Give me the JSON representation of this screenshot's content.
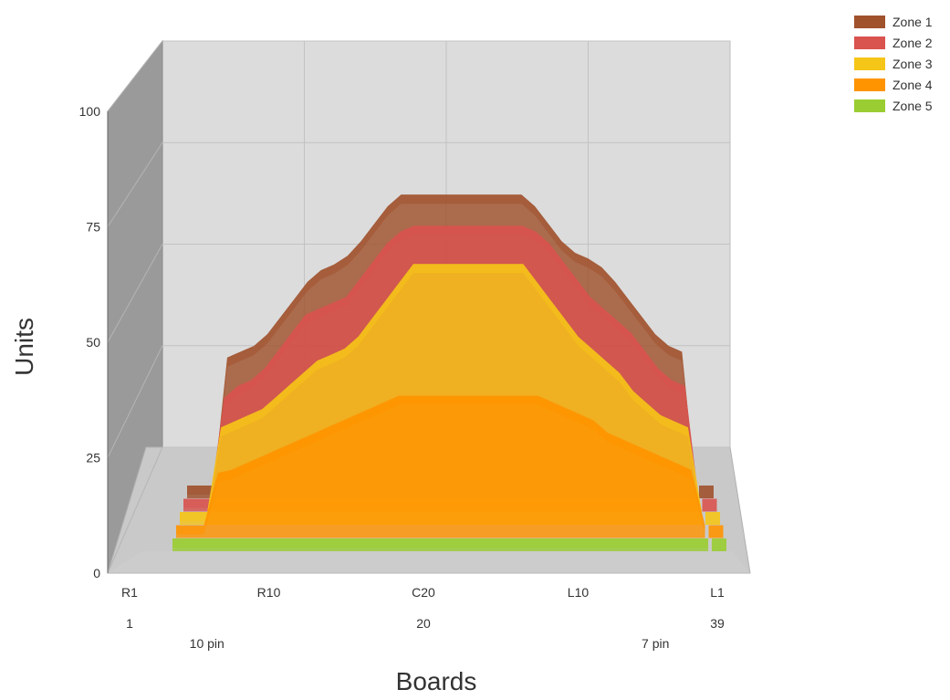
{
  "chart_data": {
    "type": "area",
    "view": "3d",
    "ylabel": "Units",
    "xlabel": "Boards",
    "ylim": [
      0,
      100
    ],
    "yticks": [
      0,
      25,
      50,
      75,
      100
    ],
    "x": [
      1,
      2,
      3,
      4,
      5,
      6,
      7,
      8,
      9,
      10,
      11,
      12,
      13,
      14,
      15,
      16,
      17,
      18,
      19,
      20,
      21,
      22,
      23,
      24,
      25,
      26,
      27,
      28,
      29,
      30,
      31,
      32,
      33,
      34,
      35,
      36,
      37,
      38,
      39
    ],
    "x_tick_labels": [
      {
        "x": 1,
        "label": "R1"
      },
      {
        "x": 10,
        "label": "R10"
      },
      {
        "x": 20,
        "label": "C20"
      },
      {
        "x": 30,
        "label": "L10"
      },
      {
        "x": 39,
        "label": "L1"
      }
    ],
    "x_tick_labels_row2": [
      {
        "x": 1,
        "label": "1"
      },
      {
        "x": 20,
        "label": "20"
      },
      {
        "x": 39,
        "label": "39"
      }
    ],
    "x_annotations": [
      {
        "x": 6,
        "label": "10 pin"
      },
      {
        "x": 35,
        "label": "7 pin"
      }
    ],
    "legend_position": "top-right",
    "series": [
      {
        "name": "Zone 1",
        "color": "#a0522d",
        "values": [
          0,
          0,
          0,
          44,
          46,
          48,
          52,
          58,
          64,
          70,
          74,
          76,
          79,
          84,
          90,
          96,
          100,
          100,
          100,
          100,
          100,
          100,
          100,
          100,
          100,
          100,
          96,
          90,
          84,
          80,
          78,
          75,
          70,
          64,
          58,
          52,
          48,
          46,
          0
        ]
      },
      {
        "name": "Zone 2",
        "color": "#d9534f",
        "values": [
          0,
          0,
          0,
          34,
          38,
          40,
          44,
          50,
          56,
          62,
          64,
          66,
          68,
          74,
          80,
          86,
          90,
          92,
          92,
          92,
          92,
          92,
          92,
          92,
          92,
          92,
          90,
          86,
          80,
          74,
          68,
          64,
          60,
          56,
          50,
          44,
          40,
          38,
          0
        ]
      },
      {
        "name": "Zone 3",
        "color": "#f5c518",
        "values": [
          0,
          0,
          0,
          28,
          30,
          32,
          34,
          38,
          42,
          46,
          50,
          52,
          54,
          58,
          64,
          70,
          76,
          82,
          82,
          82,
          82,
          82,
          82,
          82,
          82,
          82,
          76,
          70,
          64,
          58,
          54,
          50,
          46,
          40,
          36,
          32,
          30,
          28,
          0
        ]
      },
      {
        "name": "Zone 4",
        "color": "#ff9400",
        "values": [
          0,
          0,
          0,
          17,
          18,
          20,
          22,
          24,
          26,
          28,
          30,
          32,
          34,
          36,
          38,
          40,
          42,
          42,
          42,
          42,
          42,
          42,
          42,
          42,
          42,
          42,
          42,
          40,
          38,
          36,
          34,
          30,
          28,
          26,
          24,
          22,
          20,
          18,
          0
        ]
      },
      {
        "name": "Zone 5",
        "color": "#9acd32",
        "values": [
          0,
          0,
          0,
          0,
          0,
          0,
          0,
          0,
          0,
          0,
          0,
          0,
          0,
          0,
          0,
          0,
          0,
          0,
          0,
          0,
          0,
          0,
          0,
          0,
          0,
          0,
          0,
          0,
          0,
          0,
          0,
          0,
          0,
          0,
          0,
          0,
          0,
          0,
          0
        ]
      }
    ]
  }
}
